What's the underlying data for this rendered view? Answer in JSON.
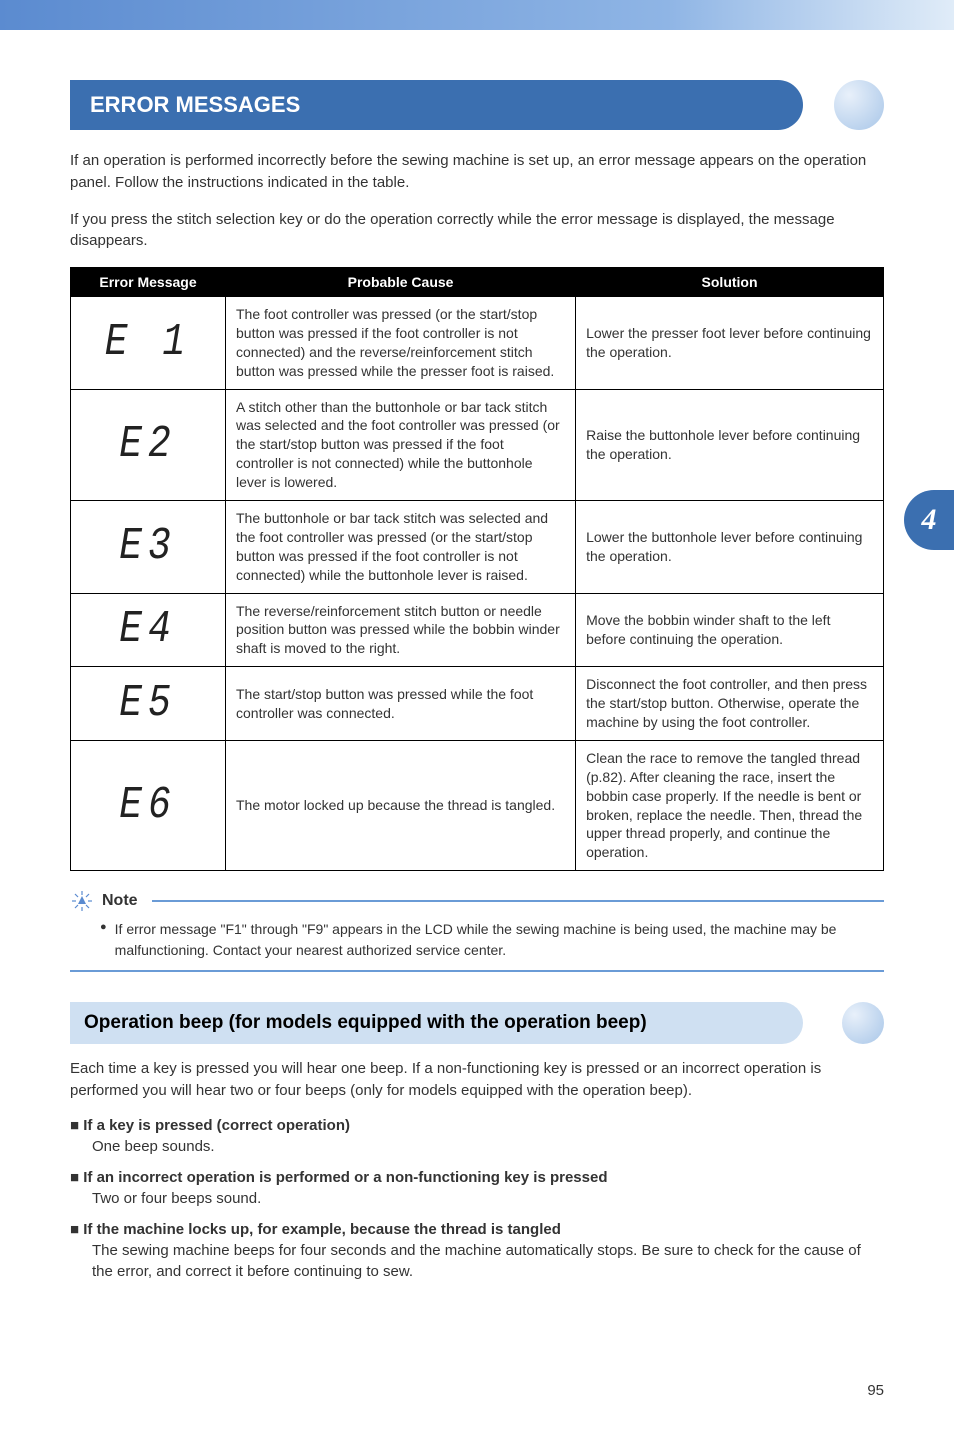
{
  "header": {
    "title": "ERROR MESSAGES"
  },
  "intro": {
    "p1": "If an operation is performed incorrectly before the sewing machine is set up, an error message appears on the operation panel. Follow the instructions indicated in the table.",
    "p2": "If you press the stitch selection key or do the operation correctly while the error message is displayed, the message disappears."
  },
  "table": {
    "headers": {
      "c1": "Error Message",
      "c2": "Probable Cause",
      "c3": "Solution"
    },
    "rows": [
      {
        "code": "E1",
        "display": "E 1",
        "cause": "The foot controller was pressed (or the start/stop button was pressed if the foot controller is not connected) and the reverse/reinforcement stitch button was pressed while the presser foot is raised.",
        "solution": "Lower the presser foot lever before continuing the operation."
      },
      {
        "code": "E2",
        "display": "E2",
        "cause": "A stitch other than the buttonhole or bar tack stitch was selected and the foot controller was pressed (or the start/stop button was pressed if the foot controller is not connected) while the buttonhole lever is lowered.",
        "solution": "Raise the buttonhole lever before continuing the operation."
      },
      {
        "code": "E3",
        "display": "E3",
        "cause": "The buttonhole or bar tack stitch was selected and the foot controller was pressed (or the start/stop button was pressed if the foot controller is not connected) while the buttonhole lever is raised.",
        "solution": "Lower the buttonhole lever before continuing the operation."
      },
      {
        "code": "E4",
        "display": "E4",
        "cause": "The reverse/reinforcement stitch button or needle position button was pressed while the bobbin winder shaft is moved to the right.",
        "solution": "Move the bobbin winder shaft to the left before continuing the operation."
      },
      {
        "code": "E5",
        "display": "E5",
        "cause": "The start/stop button was pressed while the foot controller was connected.",
        "solution": "Disconnect the foot controller, and then press the start/stop button. Otherwise, operate the machine by using the foot controller."
      },
      {
        "code": "E6",
        "display": "E6",
        "cause": "The motor locked up because the thread is tangled.",
        "solution": "Clean the race to remove the tangled thread (p.82). After cleaning the race, insert the bobbin case properly. If the needle is bent or broken, replace the needle. Then, thread the upper thread properly, and continue the operation."
      }
    ]
  },
  "note": {
    "label": "Note",
    "body": "If error message \"F1\" through \"F9\" appears in the LCD while the sewing machine is being used, the machine may be malfunctioning. Contact your nearest authorized service center."
  },
  "sub_section": {
    "title": "Operation beep (for models equipped with the operation beep)",
    "intro": "Each time a key is pressed you will hear one beep. If a non-functioning key is pressed or an incorrect operation is performed you will hear two or four beeps (only for models equipped with the operation beep).",
    "items": [
      {
        "title": "If a key is pressed (correct operation)",
        "body": "One beep sounds."
      },
      {
        "title": "If an incorrect operation is performed or a non-functioning key is pressed",
        "body": "Two or four beeps sound."
      },
      {
        "title": "If the machine locks up, for example, because the thread is tangled",
        "body": "The sewing machine beeps for four seconds and the machine automatically stops. Be sure to check for the cause of the error, and correct it before continuing to sew."
      }
    ]
  },
  "side_tab": "4",
  "page_number": "95",
  "colors": {
    "primary_blue": "#3b6fb0",
    "light_blue": "#cfe0f2",
    "rule_blue": "#6a9bd6",
    "gradient_top_bar": [
      "#5b8bd0",
      "#e0ecf8"
    ]
  }
}
